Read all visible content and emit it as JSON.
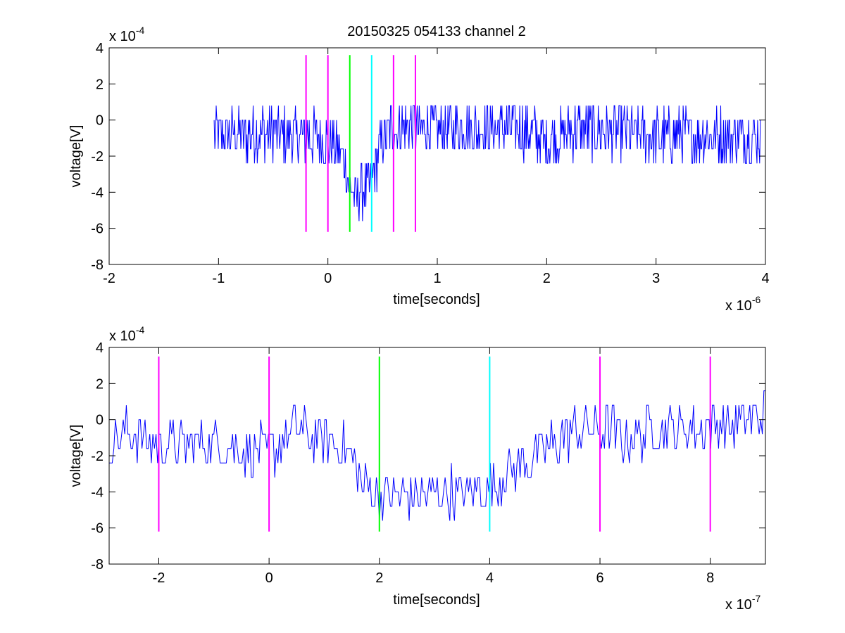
{
  "figure": {
    "title": "20150325 054133 channel 2"
  },
  "colors": {
    "signal": "#0000ff",
    "marker_magenta": "#ff00ff",
    "marker_green": "#00ff00",
    "marker_cyan": "#00ffff",
    "axes": "#000000",
    "background": "#ffffff"
  },
  "chart_data": [
    {
      "type": "line",
      "title": "20150325 054133 channel 2",
      "xlabel": "time[seconds]",
      "ylabel": "voltage[V]",
      "x_multiplier_base": "x 10",
      "x_multiplier_exp": "-6",
      "y_multiplier_base": "x 10",
      "y_multiplier_exp": "-4",
      "xlim": [
        -2,
        4
      ],
      "ylim": [
        -8,
        4
      ],
      "xticks": [
        -2,
        -1,
        0,
        1,
        2,
        3,
        4
      ],
      "xtick_labels": [
        "-2",
        "-1",
        "0",
        "1",
        "2",
        "3",
        "4"
      ],
      "yticks": [
        -8,
        -6,
        -4,
        -2,
        0,
        2,
        4
      ],
      "ytick_labels": [
        "-8",
        "-6",
        "-4",
        "-2",
        "0",
        "2",
        "4"
      ],
      "grid": false,
      "series": [
        {
          "x_range": [
            -1.04,
            3.96
          ],
          "dense": true,
          "x": [
            -1.0,
            -0.9,
            -0.8,
            -0.7,
            -0.6,
            -0.5,
            -0.4,
            -0.3,
            -0.2,
            -0.1,
            0.0,
            0.1,
            0.15,
            0.2,
            0.25,
            0.3,
            0.35,
            0.4,
            0.45,
            0.5,
            0.6,
            0.8,
            1.0,
            1.2,
            1.4,
            1.6,
            1.8,
            2.0,
            2.2,
            2.4,
            2.6,
            2.8,
            3.0,
            3.2,
            3.4,
            3.6,
            3.8,
            3.96
          ],
          "y": [
            -0.8,
            -0.8,
            -0.8,
            -0.9,
            -0.6,
            -0.8,
            -0.8,
            -0.9,
            -0.9,
            -1.0,
            -1.2,
            -1.6,
            -2.4,
            -3.8,
            -4.2,
            -4.0,
            -3.8,
            -3.4,
            -2.2,
            -1.0,
            -0.4,
            -0.4,
            -0.5,
            -0.4,
            -0.5,
            -0.4,
            -0.6,
            -1.2,
            -0.6,
            -0.6,
            -0.6,
            -0.8,
            -0.9,
            -0.8,
            -0.9,
            -0.8,
            -0.9,
            -1.0
          ],
          "noise": 1.5
        }
      ],
      "markers": [
        {
          "x": -0.2,
          "color": "marker_magenta",
          "y_range": [
            -6.2,
            3.6
          ]
        },
        {
          "x": 0.0,
          "color": "marker_magenta",
          "y_range": [
            -6.2,
            3.6
          ]
        },
        {
          "x": 0.2,
          "color": "marker_green",
          "y_range": [
            -6.2,
            3.6
          ]
        },
        {
          "x": 0.4,
          "color": "marker_cyan",
          "y_range": [
            -6.2,
            3.6
          ]
        },
        {
          "x": 0.6,
          "color": "marker_magenta",
          "y_range": [
            -6.2,
            3.6
          ]
        },
        {
          "x": 0.8,
          "color": "marker_magenta",
          "y_range": [
            -6.2,
            3.6
          ]
        }
      ]
    },
    {
      "type": "line",
      "title": "",
      "xlabel": "time[seconds]",
      "ylabel": "voltage[V]",
      "x_multiplier_base": "x 10",
      "x_multiplier_exp": "-7",
      "y_multiplier_base": "x 10",
      "y_multiplier_exp": "-4",
      "xlim": [
        -2.9,
        9.0
      ],
      "ylim": [
        -8,
        4
      ],
      "xticks": [
        -2,
        0,
        2,
        4,
        6,
        8
      ],
      "xtick_labels": [
        "-2",
        "0",
        "2",
        "4",
        "6",
        "8"
      ],
      "yticks": [
        -8,
        -6,
        -4,
        -2,
        0,
        2,
        4
      ],
      "ytick_labels": [
        "-8",
        "-6",
        "-4",
        "-2",
        "0",
        "2",
        "4"
      ],
      "grid": false,
      "series": [
        {
          "x_range": [
            -2.9,
            9.0
          ],
          "dense": true,
          "x": [
            -2.9,
            -2.5,
            -2.0,
            -1.5,
            -1.0,
            -0.5,
            0.0,
            0.5,
            1.0,
            1.4,
            1.7,
            2.0,
            2.5,
            3.0,
            3.5,
            4.0,
            4.5,
            5.0,
            5.5,
            6.0,
            6.5,
            7.0,
            7.5,
            8.0,
            8.5,
            9.0
          ],
          "y": [
            -1.4,
            -0.6,
            -1.4,
            -1.4,
            -1.3,
            -1.6,
            -1.8,
            -0.6,
            -1.2,
            -1.6,
            -3.6,
            -4.2,
            -4.2,
            -4.0,
            -4.0,
            -3.8,
            -2.6,
            -1.6,
            -0.6,
            -0.4,
            -1.0,
            -0.4,
            -0.6,
            -0.4,
            -0.2,
            0.4
          ],
          "noise": 1.4
        }
      ],
      "markers": [
        {
          "x": -2,
          "color": "marker_magenta",
          "y_range": [
            -6.2,
            3.5
          ]
        },
        {
          "x": 0,
          "color": "marker_magenta",
          "y_range": [
            -6.2,
            3.5
          ]
        },
        {
          "x": 2,
          "color": "marker_green",
          "y_range": [
            -6.2,
            3.5
          ]
        },
        {
          "x": 4,
          "color": "marker_cyan",
          "y_range": [
            -6.2,
            3.5
          ]
        },
        {
          "x": 6,
          "color": "marker_magenta",
          "y_range": [
            -6.2,
            3.5
          ]
        },
        {
          "x": 8,
          "color": "marker_magenta",
          "y_range": [
            -6.2,
            3.5
          ]
        }
      ]
    }
  ]
}
